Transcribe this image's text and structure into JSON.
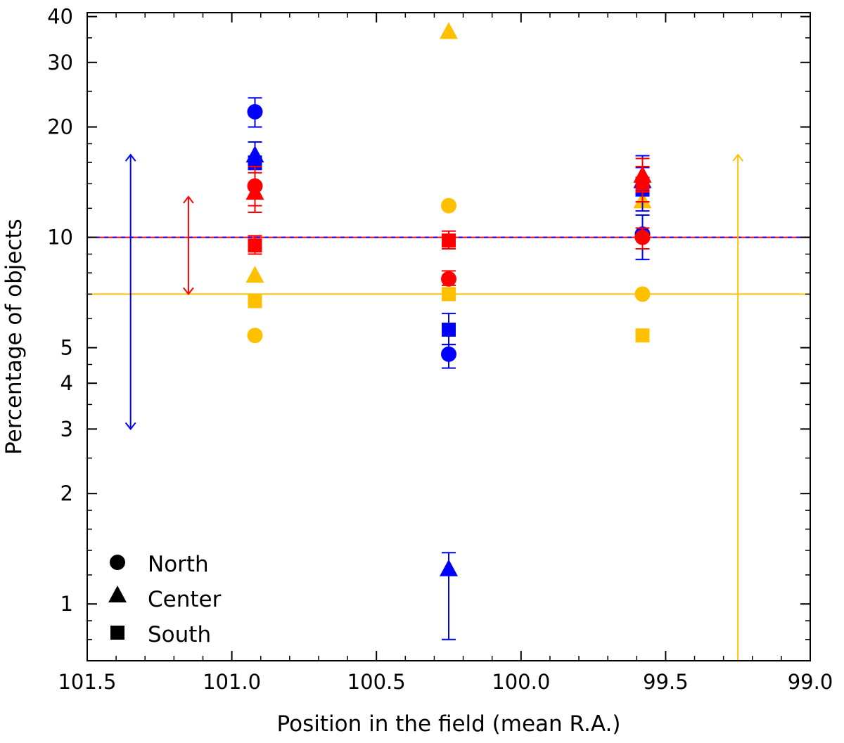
{
  "chart_data": {
    "type": "scatter",
    "xlabel": "Position in the field (mean R.A.)",
    "ylabel": "Percentage of objects",
    "xlim": [
      101.5,
      99.0
    ],
    "ylim": [
      0.7,
      41
    ],
    "yscale": "log",
    "x_ticks": [
      101.5,
      101.0,
      100.5,
      100.0,
      99.5,
      99.0
    ],
    "x_tick_labels": [
      "101.5",
      "101.0",
      "100.5",
      "100.0",
      "99.5",
      "99.0"
    ],
    "y_ticks": [
      1,
      2,
      3,
      4,
      5,
      10,
      20,
      30,
      40
    ],
    "y_tick_labels": [
      "1",
      "2",
      "3",
      "4",
      "5",
      "10",
      "20",
      "30",
      "40"
    ],
    "colors": {
      "blue": "#0000ff",
      "red": "#ff0000",
      "yellow": "#ffc000"
    },
    "legend": [
      {
        "marker": "circle",
        "label": "North"
      },
      {
        "marker": "triangle",
        "label": "Center"
      },
      {
        "marker": "square",
        "label": "South"
      }
    ],
    "reference_lines": [
      {
        "series": "yellow",
        "y": 7.0
      },
      {
        "series": "red",
        "y": 10.0
      },
      {
        "series": "blue",
        "y": 10.0
      }
    ],
    "range_arrows": [
      {
        "series": "blue",
        "x": 101.35,
        "y_low": 3.0,
        "y_high": 16.8
      },
      {
        "series": "red",
        "x": 101.15,
        "y_low": 7.0,
        "y_high": 12.9
      },
      {
        "series": "yellow",
        "x": 99.25,
        "y_low": 0.7,
        "y_high": 16.8
      }
    ],
    "series": [
      {
        "name": "blue",
        "points": [
          {
            "x": 100.92,
            "y": 22.0,
            "marker": "circle",
            "err_low": 20.0,
            "err_high": 24.0
          },
          {
            "x": 100.92,
            "y": 16.8,
            "marker": "triangle",
            "err_low": 15.3,
            "err_high": 18.2
          },
          {
            "x": 100.92,
            "y": 16.0,
            "marker": "square"
          },
          {
            "x": 100.25,
            "y": 4.8,
            "marker": "circle",
            "err_low": 4.4,
            "err_high": 5.1
          },
          {
            "x": 100.25,
            "y": 1.25,
            "marker": "triangle",
            "err_low": 0.8,
            "err_high": 1.38
          },
          {
            "x": 100.25,
            "y": 5.6,
            "marker": "square",
            "err_low": 5.1,
            "err_high": 6.2
          },
          {
            "x": 99.58,
            "y": 10.2,
            "marker": "circle",
            "err_low": 8.7,
            "err_high": 11.5
          },
          {
            "x": 99.58,
            "y": 14.3,
            "marker": "triangle",
            "err_low": 12.5,
            "err_high": 16.7
          },
          {
            "x": 99.58,
            "y": 13.5,
            "marker": "square",
            "err_low": 11.8,
            "err_high": 15.5
          }
        ]
      },
      {
        "name": "red",
        "points": [
          {
            "x": 100.92,
            "y": 13.8,
            "marker": "circle",
            "err_low": 12.2,
            "err_high": 15.6
          },
          {
            "x": 100.92,
            "y": 13.3,
            "marker": "triangle",
            "err_low": 11.7,
            "err_high": 15.0
          },
          {
            "x": 100.92,
            "y": 9.5,
            "marker": "square",
            "err_low": 9.0,
            "err_high": 10.1
          },
          {
            "x": 100.25,
            "y": 7.7,
            "marker": "circle",
            "err_low": 7.4,
            "err_high": 8.1
          },
          {
            "x": 100.25,
            "y": 9.8,
            "marker": "square",
            "err_low": 9.3,
            "err_high": 10.4
          },
          {
            "x": 99.58,
            "y": 10.0,
            "marker": "circle",
            "err_low": 9.3,
            "err_high": 10.6
          },
          {
            "x": 99.58,
            "y": 14.8,
            "marker": "triangle",
            "err_low": 13.3,
            "err_high": 16.4
          },
          {
            "x": 99.58,
            "y": 14.0,
            "marker": "square",
            "err_low": 12.5,
            "err_high": 15.6
          }
        ]
      },
      {
        "name": "yellow",
        "points": [
          {
            "x": 100.92,
            "y": 5.4,
            "marker": "circle"
          },
          {
            "x": 100.92,
            "y": 7.9,
            "marker": "triangle"
          },
          {
            "x": 100.92,
            "y": 6.7,
            "marker": "square"
          },
          {
            "x": 100.25,
            "y": 12.2,
            "marker": "circle"
          },
          {
            "x": 100.25,
            "y": 36.5,
            "marker": "triangle"
          },
          {
            "x": 100.25,
            "y": 7.0,
            "marker": "square"
          },
          {
            "x": 99.58,
            "y": 7.0,
            "marker": "circle"
          },
          {
            "x": 99.58,
            "y": 12.6,
            "marker": "triangle"
          },
          {
            "x": 99.58,
            "y": 5.4,
            "marker": "square"
          }
        ]
      }
    ]
  }
}
